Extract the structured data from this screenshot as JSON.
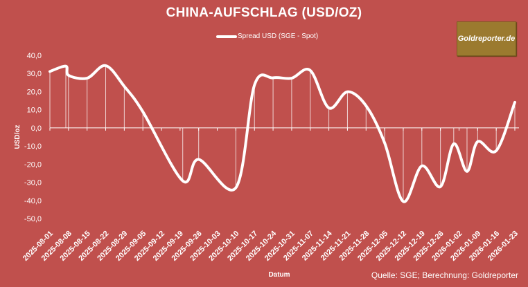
{
  "chart_data": {
    "type": "line",
    "title": "CHINA-AUFSCHLAG (USD/OZ)",
    "xlabel": "Datum",
    "ylabel": "USD/oz",
    "ylim": [
      -50,
      40
    ],
    "yticks": [
      "40,0",
      "30,0",
      "20,0",
      "10,0",
      "0,0",
      "-10,0",
      "-20,0",
      "-30,0",
      "-40,0",
      "-50,0"
    ],
    "ytick_values": [
      40,
      30,
      20,
      10,
      0,
      -10,
      -20,
      -30,
      -40,
      -50
    ],
    "xticks": [
      "2025-08-01",
      "2025-08-08",
      "2025-08-15",
      "2025-08-22",
      "2025-08-29",
      "2025-09-05",
      "2025-09-12",
      "2025-09-19",
      "2025-09-26",
      "2025-10-03",
      "2025-10-10",
      "2025-10-17",
      "2025-10-24",
      "2025-10-31",
      "2025-11-07",
      "2025-11-14",
      "2025-11-21",
      "2025-11-28",
      "2025-12-05",
      "2025-12-12",
      "2025-12-19",
      "2025-12-26",
      "2026-01-02",
      "2026-01-09",
      "2026-01-16",
      "2026-01-23"
    ],
    "grid": false,
    "legend_placement": "top",
    "line_color": "#FFFFFF",
    "background_color": "#C0504D",
    "series": [
      {
        "name": "Spread USD (SGE - Spot)",
        "x": [
          "2025-08-01",
          "2025-08-07",
          "2025-08-08",
          "2025-08-15",
          "2025-08-22",
          "2025-08-29",
          "2025-09-05",
          "2025-09-20",
          "2025-09-26",
          "2025-10-10",
          "2025-10-17",
          "2025-10-24",
          "2025-10-31",
          "2025-11-07",
          "2025-11-14",
          "2025-11-21",
          "2025-11-28",
          "2025-12-05",
          "2025-12-12",
          "2025-12-19",
          "2025-12-26",
          "2025-12-31",
          "2026-01-05",
          "2026-01-09",
          "2026-01-16",
          "2026-01-23"
        ],
        "y": [
          31.1,
          34.0,
          29.0,
          27.4,
          34.3,
          22.9,
          8.9,
          -29.2,
          -17.4,
          -33.0,
          23.6,
          27.6,
          27.4,
          31.7,
          11.0,
          19.9,
          12.2,
          -8.3,
          -40.6,
          -21.0,
          -32.4,
          -8.8,
          -24.0,
          -7.6,
          -12.6,
          14.1
        ]
      }
    ],
    "source": "Quelle: SGE; Berechnung: Goldreporter"
  },
  "logo": "Goldreporter.de"
}
